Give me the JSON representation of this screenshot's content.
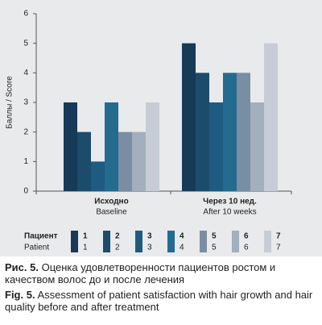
{
  "chart_data": {
    "type": "bar",
    "ylabel": "Баллы / Score",
    "categories": [
      "Исходно",
      "Через 10 нед."
    ],
    "categories_en": [
      "Baseline",
      "After 10 weeks"
    ],
    "ylim": [
      0,
      6
    ],
    "yticks": [
      0,
      1,
      2,
      3,
      4,
      5,
      6
    ],
    "legend_title": [
      "Пациент",
      "Patient"
    ],
    "series": [
      {
        "name": "1",
        "color": "#163a57",
        "values": [
          3,
          5
        ]
      },
      {
        "name": "2",
        "color": "#1c4c6c",
        "values": [
          2,
          4
        ]
      },
      {
        "name": "3",
        "color": "#1f5b80",
        "values": [
          1,
          3
        ]
      },
      {
        "name": "4",
        "color": "#246b90",
        "values": [
          3,
          4
        ]
      },
      {
        "name": "5",
        "color": "#7a8ea3",
        "values": [
          2,
          4
        ]
      },
      {
        "name": "6",
        "color": "#a2afbd",
        "values": [
          2,
          3
        ]
      },
      {
        "name": "7",
        "color": "#c6cdd6",
        "values": [
          3,
          5
        ]
      }
    ]
  },
  "caption": {
    "ru_label": "Рис. 5.",
    "ru_text": "Оценка удовлетворенности пациентов ростом и качеством волос до и после лечения",
    "en_label": "Fig. 5.",
    "en_text": "Assessment of patient satisfaction with hair growth and hair quality before and after treatment"
  }
}
